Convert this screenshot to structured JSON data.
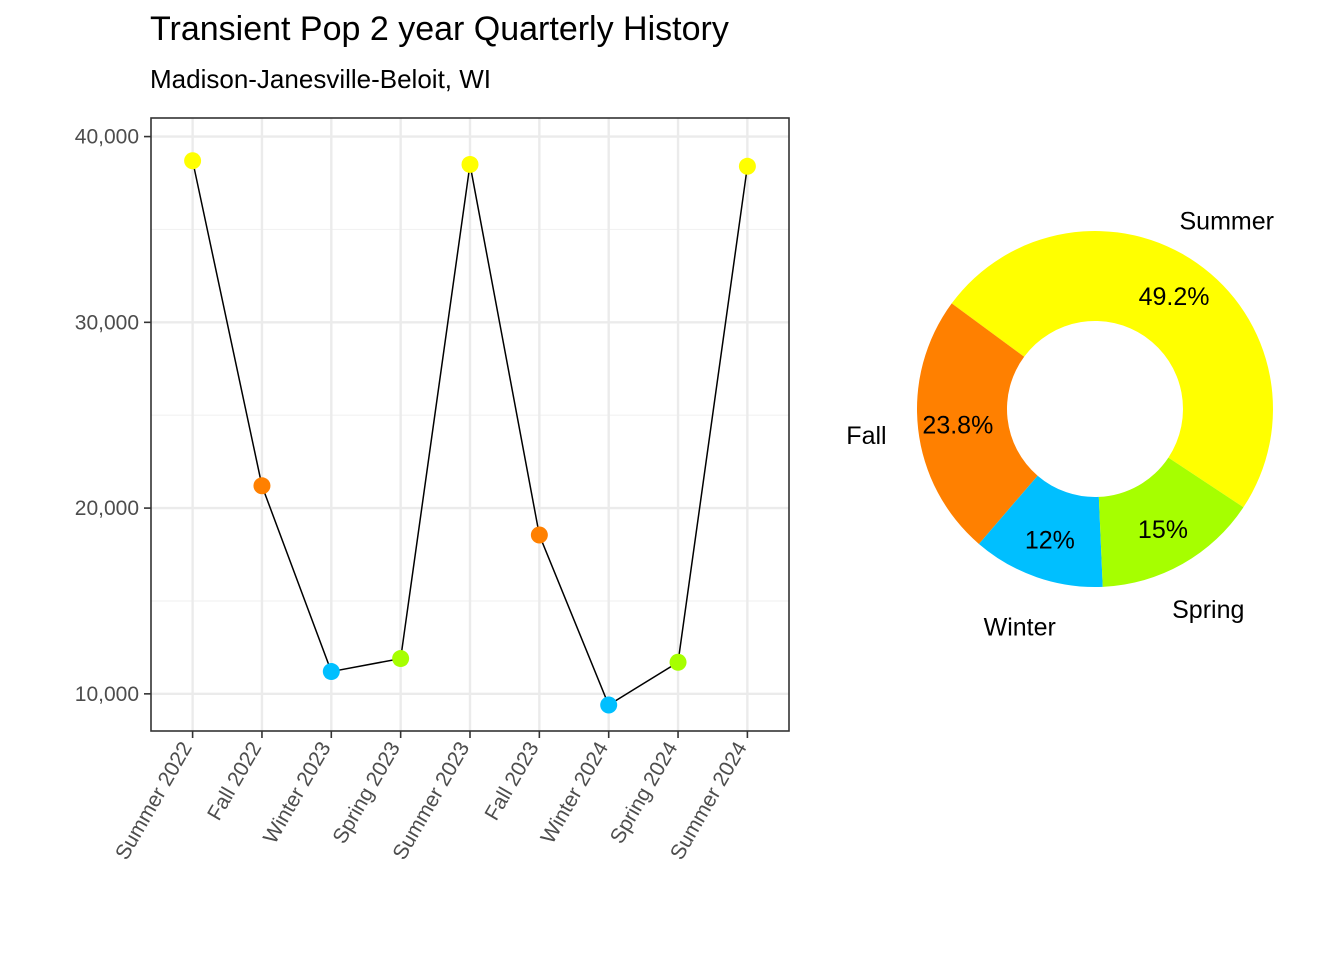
{
  "title": "Transient Pop 2 year Quarterly History",
  "subtitle": "Madison-Janesville-Beloit, WI",
  "chart_data": [
    {
      "type": "line",
      "x": [
        "Summer 2022",
        "Fall 2022",
        "Winter 2023",
        "Spring 2023",
        "Summer 2023",
        "Fall 2023",
        "Winter 2024",
        "Spring 2024",
        "Summer 2024"
      ],
      "values": [
        38700,
        21200,
        11200,
        11900,
        38500,
        18550,
        9400,
        11700,
        38400
      ],
      "season": [
        "Summer",
        "Fall",
        "Winter",
        "Spring",
        "Summer",
        "Fall",
        "Winter",
        "Spring",
        "Summer"
      ],
      "ylim": [
        8000,
        41000
      ],
      "yticks": [
        10000,
        20000,
        30000,
        40000
      ],
      "ytick_labels": [
        "10,000",
        "20,000",
        "30,000",
        "40,000"
      ],
      "xlabel": "",
      "ylabel": "",
      "grid": true,
      "season_colors": {
        "Summer": "#ffff00",
        "Fall": "#ff8000",
        "Winter": "#00bfff",
        "Spring": "#a6ff00"
      }
    },
    {
      "type": "pie",
      "donut": true,
      "slices": [
        {
          "label": "Summer",
          "value": 49.2,
          "pct_label": "49.2%",
          "color": "#ffff00"
        },
        {
          "label": "Fall",
          "value": 23.8,
          "pct_label": "23.8%",
          "color": "#ff8000"
        },
        {
          "label": "Winter",
          "value": 12,
          "pct_label": "12%",
          "color": "#00bfff"
        },
        {
          "label": "Spring",
          "value": 15,
          "pct_label": "15%",
          "color": "#a6ff00"
        }
      ]
    }
  ]
}
